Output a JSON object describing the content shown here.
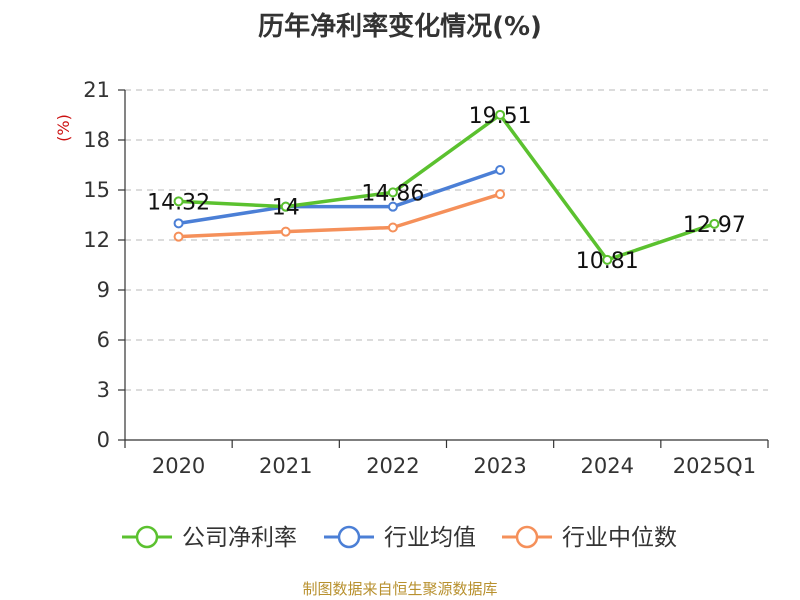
{
  "chart_data": {
    "type": "line",
    "title": "历年净利率变化情况(%)",
    "ylabel": "(%)",
    "categories": [
      "2020",
      "2021",
      "2022",
      "2023",
      "2024",
      "2025Q1"
    ],
    "ylim": [
      0,
      21
    ],
    "yticks": [
      0,
      3,
      6,
      9,
      12,
      15,
      18,
      21
    ],
    "grid": "horizontal dashed",
    "legend_position": "bottom",
    "series": [
      {
        "name": "公司净利率",
        "color": "#5bc12f",
        "values": [
          14.32,
          14,
          14.86,
          19.51,
          10.81,
          12.97
        ],
        "labels": [
          "14.32",
          "14",
          "14.86",
          "19.51",
          "10.81",
          "12.97"
        ]
      },
      {
        "name": "行业均值",
        "color": "#4b7fd6",
        "values": [
          13.0,
          14.0,
          14.0,
          16.2,
          null,
          null
        ]
      },
      {
        "name": "行业中位数",
        "color": "#f5905a",
        "values": [
          12.2,
          12.5,
          12.75,
          14.75,
          null,
          null
        ]
      }
    ]
  },
  "source": "制图数据来自恒生聚源数据库"
}
